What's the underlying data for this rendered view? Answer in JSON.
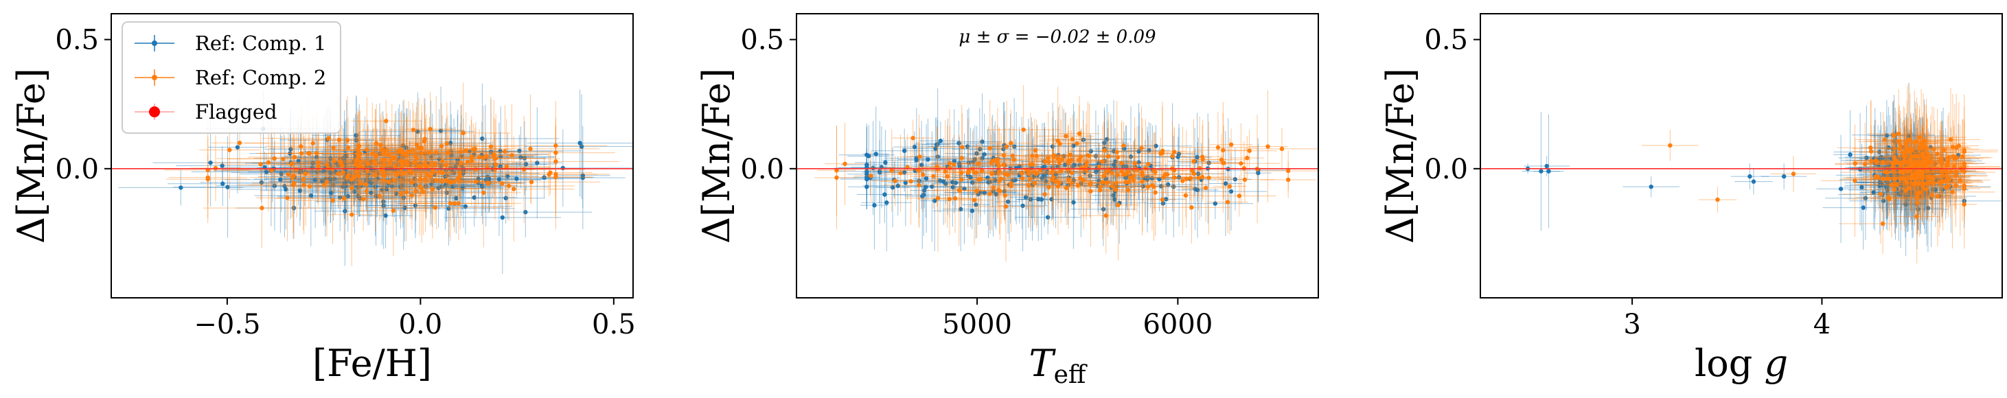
{
  "figure": {
    "legend": [
      {
        "label": "Ref: Comp. 1",
        "color": "#1f77b4",
        "marker": "point-with-errorbar"
      },
      {
        "label": "Ref: Comp. 2",
        "color": "#ff7f0e",
        "marker": "point-with-errorbar"
      },
      {
        "label": "Flagged",
        "color": "#ff0000",
        "marker": "point-with-errorbar"
      }
    ],
    "ref_line_color": "#ff2d2d",
    "annotation": "μ ± σ = −0.02 ± 0.09"
  },
  "chart_data": [
    {
      "type": "scatter",
      "id": "feh",
      "xlabel": "[Fe/H]",
      "ylabel": "Δ[Mn/Fe]",
      "xlim": [
        -0.8,
        0.55
      ],
      "ylim": [
        -0.5,
        0.6
      ],
      "xticks": [
        -0.5,
        0.0,
        0.5
      ],
      "xtick_labels": [
        "−0.5",
        "0.0",
        "0.5"
      ],
      "yticks": [
        0.0,
        0.5
      ],
      "ytick_labels": [
        "0.0",
        "0.5"
      ],
      "hline": 0.0,
      "legend_position": "top-left",
      "series": [
        {
          "name": "Ref: Comp. 1",
          "color": "#1f77b4",
          "generator": {
            "n": 230,
            "seed": 11,
            "x_center": -0.05,
            "x_spread": 0.2,
            "x_min": -0.62,
            "x_max": 0.42,
            "y_center": -0.02,
            "y_spread": 0.06,
            "y_min": -0.26,
            "y_max": 0.18,
            "xerr": [
              0.05,
              0.2
            ],
            "yerr": [
              0.06,
              0.22
            ]
          }
        },
        {
          "name": "Ref: Comp. 2",
          "color": "#ff7f0e",
          "generator": {
            "n": 230,
            "seed": 23,
            "x_center": -0.08,
            "x_spread": 0.2,
            "x_min": -0.55,
            "x_max": 0.35,
            "y_center": 0.0,
            "y_spread": 0.06,
            "y_min": -0.25,
            "y_max": 0.2,
            "xerr": [
              0.05,
              0.18
            ],
            "yerr": [
              0.06,
              0.22
            ]
          }
        },
        {
          "name": "Flagged",
          "color": "#ff0000",
          "points": []
        }
      ]
    },
    {
      "type": "scatter",
      "id": "teff",
      "xlabel": "T_eff",
      "ylabel": "Δ[Mn/Fe]",
      "xlim": [
        4100,
        6700
      ],
      "ylim": [
        -0.5,
        0.6
      ],
      "xticks": [
        5000,
        6000
      ],
      "xtick_labels": [
        "5000",
        "6000"
      ],
      "yticks": [
        0.0,
        0.5
      ],
      "ytick_labels": [
        "0.0",
        "0.5"
      ],
      "hline": 0.0,
      "series": [
        {
          "name": "Ref: Comp. 1",
          "color": "#1f77b4",
          "generator": {
            "n": 230,
            "seed": 37,
            "x_center": 5350,
            "x_spread": 500,
            "x_min": 4450,
            "x_max": 6400,
            "y_center": -0.02,
            "y_spread": 0.06,
            "y_min": -0.26,
            "y_max": 0.18,
            "xerr": [
              60,
              200
            ],
            "yerr": [
              0.06,
              0.22
            ]
          }
        },
        {
          "name": "Ref: Comp. 2",
          "color": "#ff7f0e",
          "generator": {
            "n": 230,
            "seed": 41,
            "x_center": 5500,
            "x_spread": 500,
            "x_min": 4300,
            "x_max": 6550,
            "y_center": -0.01,
            "y_spread": 0.06,
            "y_min": -0.25,
            "y_max": 0.2,
            "xerr": [
              60,
              200
            ],
            "yerr": [
              0.06,
              0.22
            ]
          }
        }
      ]
    },
    {
      "type": "scatter",
      "id": "logg",
      "xlabel": "log g",
      "ylabel": "Δ[Mn/Fe]",
      "xlim": [
        2.2,
        4.95
      ],
      "ylim": [
        -0.5,
        0.6
      ],
      "xticks": [
        3,
        4
      ],
      "xtick_labels": [
        "3",
        "4"
      ],
      "yticks": [
        0.0,
        0.5
      ],
      "ytick_labels": [
        "0.0",
        "0.5"
      ],
      "hline": 0.0,
      "series": [
        {
          "name": "Ref: Comp. 1",
          "color": "#1f77b4",
          "generator": {
            "n": 200,
            "seed": 53,
            "x_center": 4.45,
            "x_spread": 0.12,
            "x_min": 4.1,
            "x_max": 4.75,
            "y_center": -0.02,
            "y_spread": 0.06,
            "y_min": -0.26,
            "y_max": 0.18,
            "xerr": [
              0.05,
              0.25
            ],
            "yerr": [
              0.06,
              0.22
            ]
          },
          "points": [
            [
              2.45,
              0.0,
              0.2,
              0.02
            ],
            [
              2.52,
              -0.01,
              0.1,
              0.23
            ],
            [
              2.56,
              -0.01,
              0.08,
              0.22
            ],
            [
              2.55,
              0.01,
              0.12,
              0.04
            ],
            [
              3.1,
              -0.07,
              0.15,
              0.04
            ],
            [
              3.62,
              -0.03,
              0.1,
              0.05
            ],
            [
              3.64,
              -0.05,
              0.1,
              0.05
            ],
            [
              3.8,
              -0.03,
              0.12,
              0.05
            ]
          ]
        },
        {
          "name": "Ref: Comp. 2",
          "color": "#ff7f0e",
          "generator": {
            "n": 200,
            "seed": 67,
            "x_center": 4.5,
            "x_spread": 0.12,
            "x_min": 4.15,
            "x_max": 4.75,
            "y_center": -0.01,
            "y_spread": 0.06,
            "y_min": -0.25,
            "y_max": 0.2,
            "xerr": [
              0.05,
              0.25
            ],
            "yerr": [
              0.06,
              0.22
            ]
          },
          "points": [
            [
              3.2,
              0.09,
              0.15,
              0.06
            ],
            [
              3.45,
              -0.12,
              0.1,
              0.05
            ],
            [
              3.85,
              -0.02,
              0.12,
              0.07
            ]
          ]
        }
      ]
    }
  ]
}
